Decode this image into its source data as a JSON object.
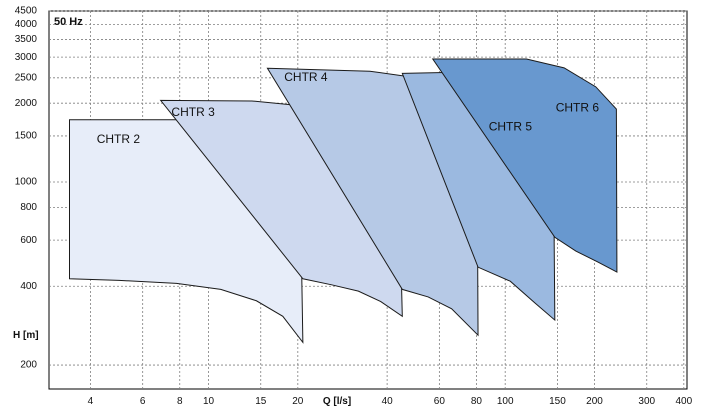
{
  "chart_data": {
    "type": "area",
    "corner_label": "50 Hz",
    "xlabel": "Q [l/s]",
    "ylabel": "H [m]",
    "x_scale": "log",
    "y_scale": "log",
    "xlim": [
      2.9,
      410
    ],
    "ylim": [
      162,
      4500
    ],
    "grid": true,
    "x_ticks": [
      4,
      6,
      8,
      10,
      15,
      20,
      40,
      60,
      80,
      100,
      150,
      200,
      300,
      400
    ],
    "y_ticks": [
      200,
      400,
      600,
      800,
      1000,
      1500,
      2000,
      2500,
      3000,
      3500,
      4000,
      4500
    ],
    "x_tick_labels": [
      {
        "value": 4,
        "text": "4"
      },
      {
        "value": 6,
        "text": "6"
      },
      {
        "value": 8,
        "text": "8"
      },
      {
        "value": 10,
        "text": "10"
      },
      {
        "value": 15,
        "text": "15"
      },
      {
        "value": 20,
        "text": "20"
      },
      {
        "value": 40,
        "text": "40"
      },
      {
        "value": 60,
        "text": "60"
      },
      {
        "value": 80,
        "text": "80"
      },
      {
        "value": 100,
        "text": "100"
      },
      {
        "value": 150,
        "text": "150"
      },
      {
        "value": 200,
        "text": "200"
      },
      {
        "value": 300,
        "text": "300"
      },
      {
        "value": 400,
        "text": "400"
      }
    ],
    "y_tick_labels": [
      {
        "value": 200,
        "text": "200"
      },
      {
        "value": 400,
        "text": "400"
      },
      {
        "value": 600,
        "text": "600"
      },
      {
        "value": 800,
        "text": "800"
      },
      {
        "value": 1000,
        "text": "1000"
      },
      {
        "value": 1500,
        "text": "1500"
      },
      {
        "value": 2000,
        "text": "2000"
      },
      {
        "value": 2500,
        "text": "2500"
      },
      {
        "value": 3000,
        "text": "3000"
      },
      {
        "value": 3500,
        "text": "3500"
      },
      {
        "value": 4000,
        "text": "4000"
      },
      {
        "value": 4500,
        "text": "4500"
      }
    ],
    "series": [
      {
        "name": "CHTR 2",
        "color": "#e7edf9",
        "label_at": [
          4.2,
          1450
        ],
        "top": [
          [
            3.4,
            1730
          ],
          [
            8.0,
            1730
          ],
          [
            11.5,
            1650
          ],
          [
            15.0,
            1500
          ],
          [
            20.3,
            1270
          ]
        ],
        "right": [
          [
            20.3,
            1270
          ],
          [
            20.8,
            244
          ]
        ],
        "bottom": [
          [
            20.8,
            244
          ],
          [
            17.8,
            307
          ],
          [
            14.5,
            352
          ],
          [
            11.0,
            389
          ],
          [
            7.8,
            410
          ],
          [
            5.0,
            421
          ],
          [
            3.4,
            427
          ]
        ]
      },
      {
        "name": "CHTR 3",
        "color": "#ced9ef",
        "label_at": [
          7.5,
          1840
        ],
        "top": [
          [
            6.9,
            2050
          ],
          [
            14.0,
            2040
          ],
          [
            22.0,
            1940
          ],
          [
            31.0,
            1760
          ],
          [
            43.5,
            1450
          ]
        ],
        "right": [
          [
            43.5,
            1450
          ],
          [
            45.0,
            307
          ]
        ],
        "bottom": [
          [
            45.0,
            307
          ],
          [
            38.0,
            350
          ],
          [
            32.0,
            383
          ],
          [
            26.0,
            405
          ],
          [
            20.8,
            427
          ]
        ]
      },
      {
        "name": "CHTR 4",
        "color": "#b6c9e6",
        "label_at": [
          18.0,
          2500
        ],
        "top": [
          [
            15.8,
            2720
          ],
          [
            35.0,
            2650
          ],
          [
            53.0,
            2480
          ],
          [
            68.0,
            2230
          ],
          [
            80.3,
            1980
          ]
        ],
        "right": [
          [
            80.3,
            1980
          ],
          [
            81.0,
            260
          ]
        ],
        "bottom": [
          [
            81.0,
            260
          ],
          [
            66.0,
            328
          ],
          [
            55.0,
            364
          ],
          [
            45.0,
            389
          ]
        ]
      },
      {
        "name": "CHTR 5",
        "color": "#9bb9e0",
        "label_at": [
          88.0,
          1620
        ],
        "top": [
          [
            45.0,
            2600
          ],
          [
            87.0,
            2640
          ],
          [
            108.0,
            2460
          ],
          [
            126.0,
            2190
          ],
          [
            145.0,
            1890
          ]
        ],
        "right": [
          [
            145.0,
            1890
          ],
          [
            147.0,
            297
          ]
        ],
        "bottom": [
          [
            147.0,
            297
          ],
          [
            126.0,
            345
          ],
          [
            104.0,
            418
          ],
          [
            81.0,
            473
          ]
        ]
      },
      {
        "name": "CHTR 6",
        "color": "#6898cf",
        "label_at": [
          148.0,
          1910
        ],
        "top": [
          [
            57.0,
            2950
          ],
          [
            118.0,
            2950
          ],
          [
            158.0,
            2730
          ],
          [
            202.0,
            2310
          ],
          [
            237.0,
            1900
          ]
        ],
        "right": [
          [
            237.0,
            1900
          ],
          [
            238.0,
            453
          ]
        ],
        "bottom": [
          [
            238.0,
            453
          ],
          [
            205.0,
            495
          ],
          [
            173.0,
            545
          ],
          [
            147.0,
            615
          ]
        ]
      }
    ]
  }
}
